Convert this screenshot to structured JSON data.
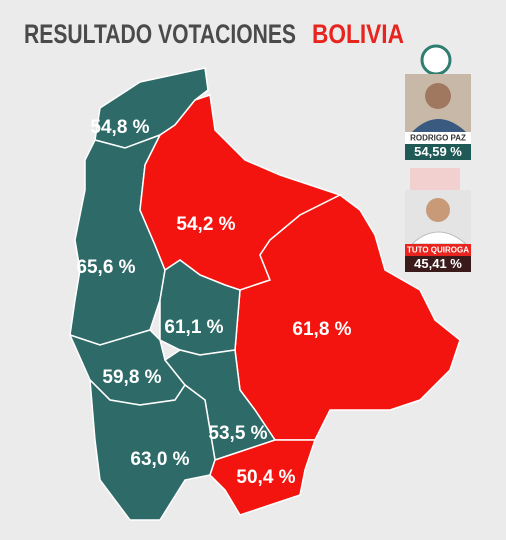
{
  "header": {
    "title": "RESULTADO VOTACIONES",
    "highlight": "BOLIVIA"
  },
  "regions": [
    {
      "label": "54,8 %",
      "color": "#2e6b68"
    },
    {
      "label": "65,6 %",
      "color": "#2e6b68"
    },
    {
      "label": "54,2 %",
      "color": "#f4140f"
    },
    {
      "label": "61,8 %",
      "color": "#f4140f"
    },
    {
      "label": "61,1 %",
      "color": "#2e6b68"
    },
    {
      "label": "59,8 %",
      "color": "#2e6b68"
    },
    {
      "label": "53,5 %",
      "color": "#2e6b68"
    },
    {
      "label": "63,0 %",
      "color": "#2e6b68"
    },
    {
      "label": "50,4 %",
      "color": "#f4140f"
    }
  ],
  "candidates": [
    {
      "name": "RODRIGO PAZ",
      "percent": "54,59 %"
    },
    {
      "name": "TUTO QUIROGA",
      "percent": "45,41 %"
    }
  ]
}
